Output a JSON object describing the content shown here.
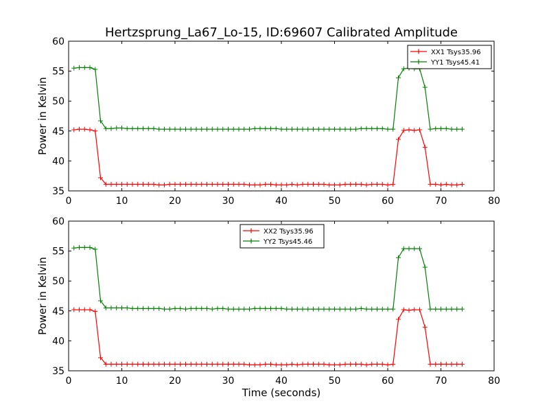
{
  "figure": {
    "title": "Hertzsprung_La67_Lo-15, ID:69607 Calibrated Amplitude"
  },
  "chart_data": [
    {
      "type": "line",
      "title": "Hertzsprung_La67_Lo-15, ID:69607 Calibrated Amplitude",
      "xlabel": "",
      "ylabel": "Power in Kelvin",
      "xlim": [
        0,
        80
      ],
      "ylim": [
        35,
        60
      ],
      "xticks": [
        0,
        10,
        20,
        30,
        40,
        50,
        60,
        70,
        80
      ],
      "yticks": [
        35,
        40,
        45,
        50,
        55,
        60
      ],
      "grid": false,
      "legend_position": "upper-right",
      "x": [
        1,
        2,
        3,
        4,
        5,
        6,
        7,
        8,
        9,
        10,
        11,
        12,
        13,
        14,
        15,
        16,
        17,
        18,
        19,
        20,
        21,
        22,
        23,
        24,
        25,
        26,
        27,
        28,
        29,
        30,
        31,
        32,
        33,
        34,
        35,
        36,
        37,
        38,
        39,
        40,
        41,
        42,
        43,
        44,
        45,
        46,
        47,
        48,
        49,
        50,
        51,
        52,
        53,
        54,
        55,
        56,
        57,
        58,
        59,
        60,
        61,
        62,
        63,
        64,
        65,
        66,
        67,
        68,
        69,
        70,
        71,
        72,
        73,
        74
      ],
      "series": [
        {
          "name": "XX1 Tsys35.96",
          "color": "#ff0000",
          "values": [
            45.2,
            45.3,
            45.3,
            45.2,
            45.0,
            37.2,
            36.1,
            36.1,
            36.1,
            36.1,
            36.1,
            36.1,
            36.1,
            36.1,
            36.1,
            36.1,
            36.0,
            36.0,
            36.1,
            36.1,
            36.1,
            36.1,
            36.1,
            36.1,
            36.1,
            36.1,
            36.1,
            36.1,
            36.1,
            36.1,
            36.1,
            36.1,
            36.1,
            36.0,
            36.0,
            36.0,
            36.1,
            36.1,
            36.0,
            36.0,
            36.0,
            36.1,
            36.0,
            36.1,
            36.1,
            36.1,
            36.1,
            36.1,
            36.0,
            36.0,
            36.0,
            36.1,
            36.1,
            36.1,
            36.1,
            36.0,
            36.1,
            36.1,
            36.1,
            36.0,
            36.1,
            43.6,
            45.1,
            45.2,
            45.1,
            45.2,
            42.3,
            36.1,
            36.1,
            36.0,
            36.1,
            36.0,
            36.0,
            36.1
          ]
        },
        {
          "name": "YY1 Tsys45.41",
          "color": "#008000",
          "values": [
            55.5,
            55.6,
            55.6,
            55.6,
            55.3,
            46.7,
            45.4,
            45.4,
            45.5,
            45.5,
            45.4,
            45.4,
            45.4,
            45.4,
            45.4,
            45.4,
            45.3,
            45.3,
            45.3,
            45.3,
            45.3,
            45.3,
            45.3,
            45.3,
            45.3,
            45.3,
            45.3,
            45.3,
            45.3,
            45.3,
            45.3,
            45.3,
            45.3,
            45.3,
            45.4,
            45.4,
            45.4,
            45.4,
            45.4,
            45.3,
            45.3,
            45.3,
            45.3,
            45.3,
            45.3,
            45.3,
            45.3,
            45.3,
            45.3,
            45.3,
            45.3,
            45.3,
            45.3,
            45.3,
            45.4,
            45.4,
            45.4,
            45.4,
            45.4,
            45.3,
            45.3,
            53.9,
            55.4,
            55.5,
            55.4,
            55.4,
            52.3,
            45.3,
            45.4,
            45.4,
            45.4,
            45.3,
            45.3,
            45.3
          ]
        }
      ]
    },
    {
      "type": "line",
      "title": "",
      "xlabel": "Time (seconds)",
      "ylabel": "Power in Kelvin",
      "xlim": [
        0,
        80
      ],
      "ylim": [
        35,
        60
      ],
      "xticks": [
        0,
        10,
        20,
        30,
        40,
        50,
        60,
        70,
        80
      ],
      "yticks": [
        35,
        40,
        45,
        50,
        55,
        60
      ],
      "grid": false,
      "legend_position": "upper-center",
      "x": [
        1,
        2,
        3,
        4,
        5,
        6,
        7,
        8,
        9,
        10,
        11,
        12,
        13,
        14,
        15,
        16,
        17,
        18,
        19,
        20,
        21,
        22,
        23,
        24,
        25,
        26,
        27,
        28,
        29,
        30,
        31,
        32,
        33,
        34,
        35,
        36,
        37,
        38,
        39,
        40,
        41,
        42,
        43,
        44,
        45,
        46,
        47,
        48,
        49,
        50,
        51,
        52,
        53,
        54,
        55,
        56,
        57,
        58,
        59,
        60,
        61,
        62,
        63,
        64,
        65,
        66,
        67,
        68,
        69,
        70,
        71,
        72,
        73,
        74
      ],
      "series": [
        {
          "name": "XX2 Tsys35.96",
          "color": "#ff0000",
          "values": [
            45.2,
            45.2,
            45.2,
            45.2,
            44.9,
            37.2,
            36.1,
            36.1,
            36.1,
            36.1,
            36.1,
            36.1,
            36.1,
            36.1,
            36.1,
            36.1,
            36.1,
            36.1,
            36.1,
            36.1,
            36.1,
            36.1,
            36.1,
            36.1,
            36.1,
            36.1,
            36.1,
            36.1,
            36.1,
            36.1,
            36.1,
            36.1,
            36.1,
            36.0,
            36.0,
            36.0,
            36.1,
            36.1,
            36.0,
            36.0,
            36.0,
            36.1,
            36.0,
            36.1,
            36.1,
            36.1,
            36.1,
            36.1,
            36.0,
            36.0,
            36.0,
            36.1,
            36.1,
            36.1,
            36.1,
            36.0,
            36.1,
            36.1,
            36.1,
            36.0,
            36.1,
            43.6,
            45.2,
            45.1,
            45.2,
            45.2,
            42.3,
            36.1,
            36.1,
            36.1,
            36.1,
            36.1,
            36.1,
            36.1
          ]
        },
        {
          "name": "YY2 Tsys45.46",
          "color": "#008000",
          "values": [
            55.5,
            55.6,
            55.6,
            55.6,
            55.3,
            46.7,
            45.5,
            45.5,
            45.5,
            45.5,
            45.5,
            45.4,
            45.4,
            45.4,
            45.4,
            45.4,
            45.4,
            45.3,
            45.3,
            45.4,
            45.4,
            45.3,
            45.4,
            45.4,
            45.4,
            45.4,
            45.3,
            45.4,
            45.4,
            45.3,
            45.3,
            45.3,
            45.3,
            45.3,
            45.4,
            45.4,
            45.4,
            45.4,
            45.4,
            45.4,
            45.3,
            45.3,
            45.3,
            45.3,
            45.3,
            45.3,
            45.3,
            45.3,
            45.3,
            45.3,
            45.3,
            45.3,
            45.3,
            45.3,
            45.4,
            45.3,
            45.3,
            45.3,
            45.3,
            45.3,
            45.3,
            53.9,
            55.4,
            55.4,
            55.4,
            55.4,
            52.3,
            45.3,
            45.3,
            45.3,
            45.3,
            45.3,
            45.3,
            45.3
          ]
        }
      ]
    }
  ]
}
